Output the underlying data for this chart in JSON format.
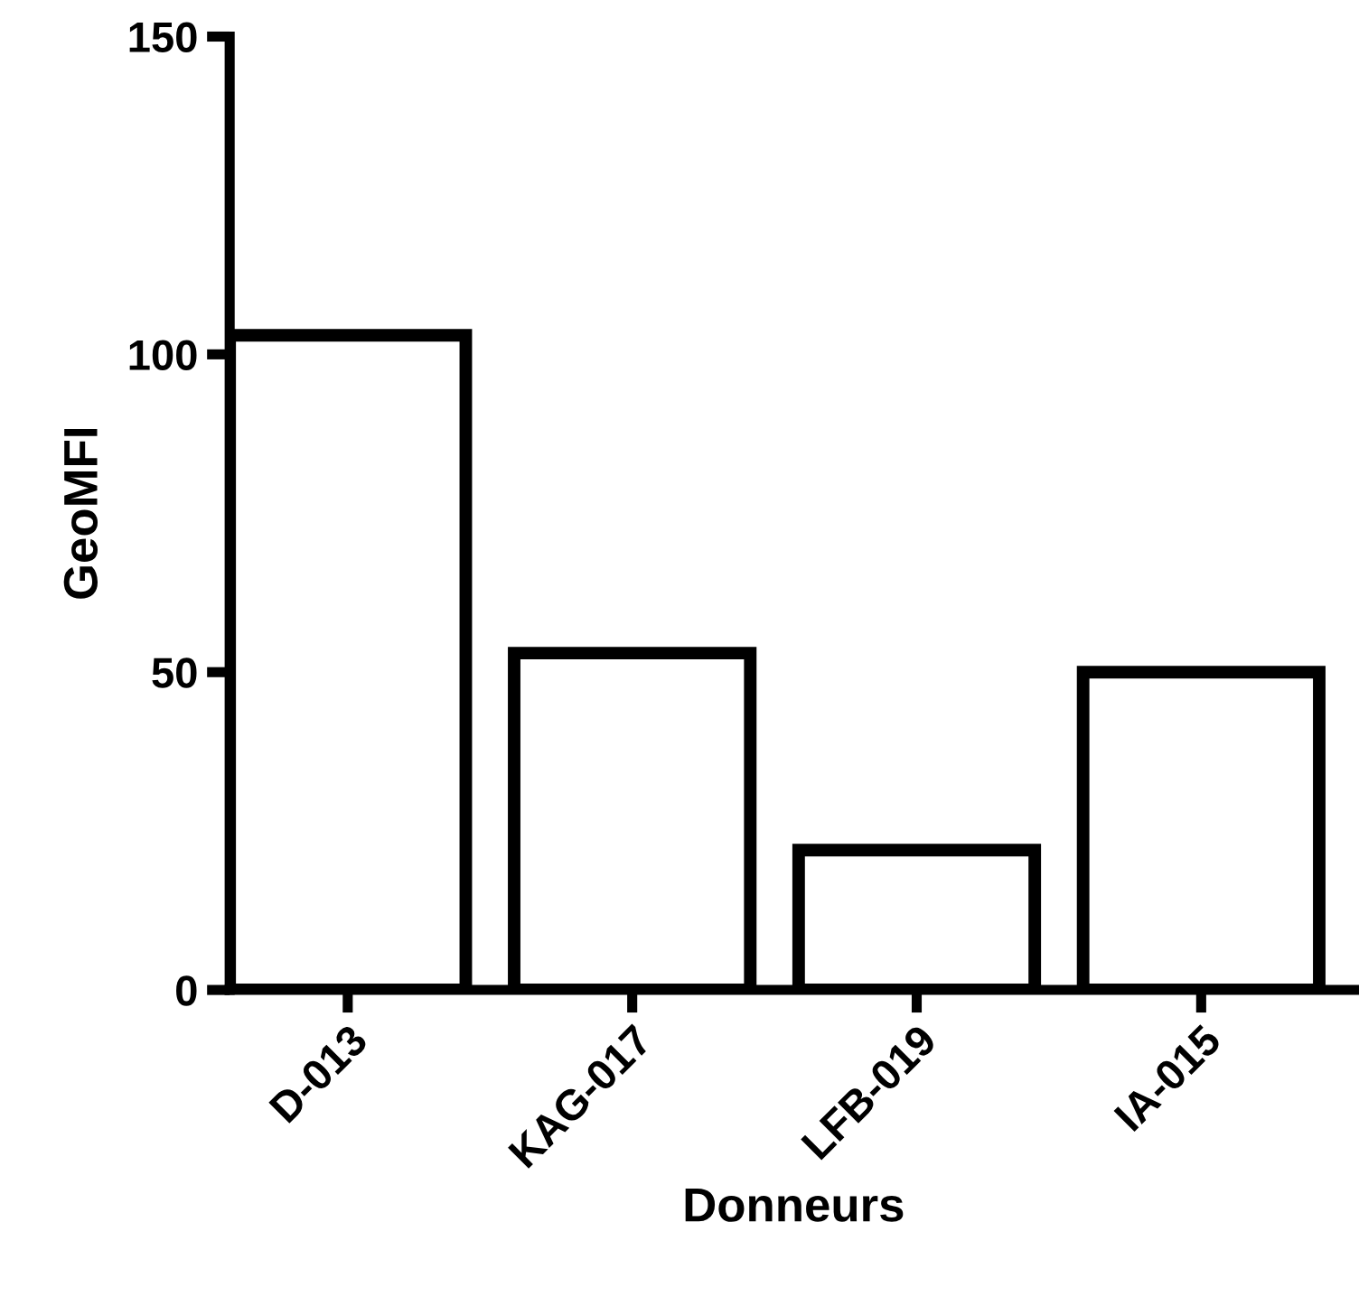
{
  "chart_data": {
    "type": "bar",
    "xlabel": "Donneurs",
    "ylabel": "GeoMFI",
    "categories": [
      "D-013",
      "KAG-017",
      "LFB-019",
      "IA-015"
    ],
    "values": [
      103,
      53,
      22,
      50
    ],
    "color": "#000000",
    "ylim": [
      0,
      150
    ],
    "yticks": [
      0,
      50,
      100,
      150
    ],
    "grid": false,
    "legend": false
  }
}
